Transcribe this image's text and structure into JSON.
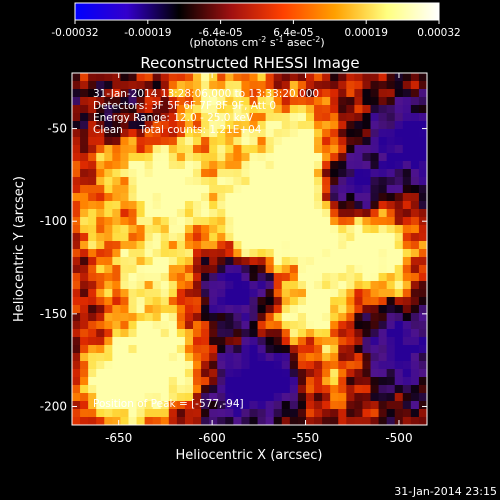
{
  "chart_data": {
    "type": "heatmap",
    "title": "Reconstructed RHESSI Image",
    "colorbar": {
      "ticks": [
        "-0.00032",
        "-0.00019",
        "-6.4e-05",
        "6.4e-05",
        "0.00019",
        "0.00032"
      ],
      "range": [
        -0.00032,
        0.00032
      ],
      "colormap": [
        "#0000ff",
        "#3300cc",
        "#000000",
        "#a01010",
        "#ff4000",
        "#ffa000",
        "#ffff80",
        "#ffffff"
      ]
    },
    "xlabel": "Heliocentric X (arcsec)",
    "ylabel": "Heliocentric Y (arcsec)",
    "x_ticks": [
      -650,
      -600,
      -550,
      -500
    ],
    "y_ticks": [
      -50,
      -100,
      -150,
      -200
    ],
    "xlim": [
      -675,
      -485
    ],
    "ylim": [
      -210,
      -20
    ],
    "peak": {
      "x": -577,
      "y": -94
    },
    "annotations": {
      "line1": "31-Jan-2014 13:28:06.000 to 13:33:20.000",
      "line2": "Detectors: 3F 5F 6F 7F 8F 9F, Att 0",
      "line3": "Energy Range: 12.0 - 25.0 keV",
      "line4": "Clean     Total counts: 1.21E+04",
      "peak_label": "Position of Peak = [-577,-94]"
    },
    "grid": false
  },
  "footer_timestamp": "31-Jan-2014 23:15",
  "colors": {
    "background": "#000000",
    "text": "#ffffff",
    "low": "#3300aa",
    "high": "#ffff80"
  }
}
